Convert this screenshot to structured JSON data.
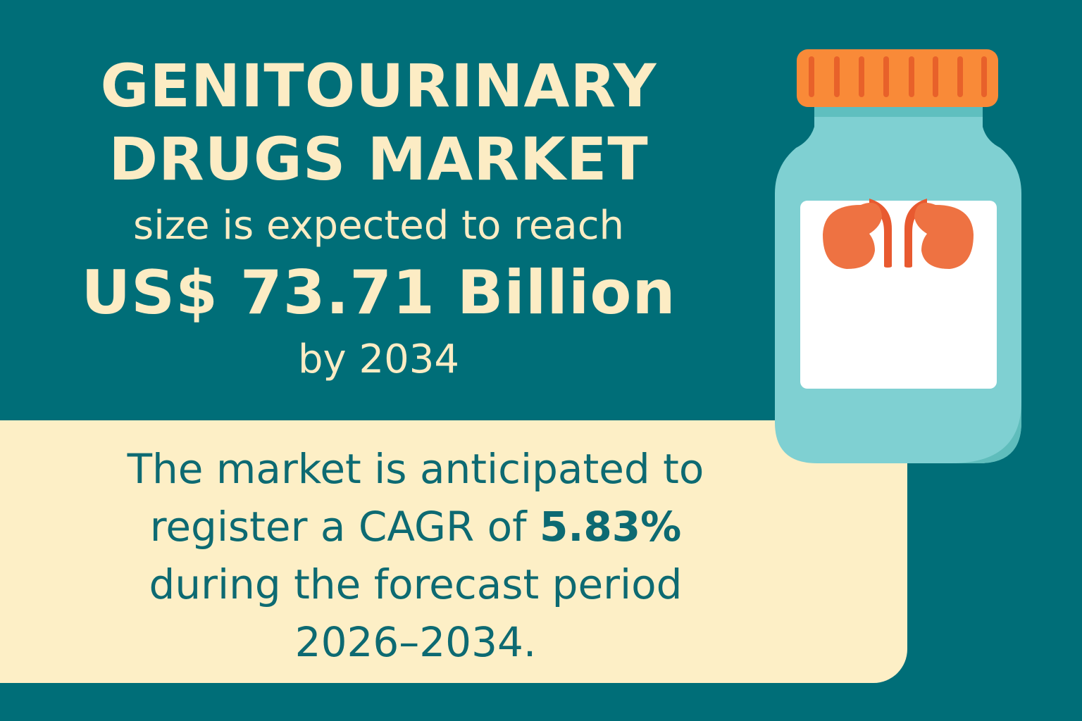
{
  "headline": {
    "title_line1": "GENITOURINARY",
    "title_line2": "DRUGS MARKET",
    "subtitle": "size is expected to reach",
    "value": "US$ 73.71 Billion",
    "year_text": "by 2034"
  },
  "forecast": {
    "line1": "The market is anticipated to",
    "line2_prefix": "register a CAGR of ",
    "cagr": "5.83%",
    "line3": "during the forecast period",
    "line4": "2026–2034."
  },
  "illustration": {
    "icon": "pill-bottle-with-kidneys-icon",
    "colors": {
      "background": "#006e78",
      "panel": "#fdefc6",
      "cap": "#f98a38",
      "bottle": "#7fd0d2",
      "kidney": "#ee7242"
    }
  }
}
